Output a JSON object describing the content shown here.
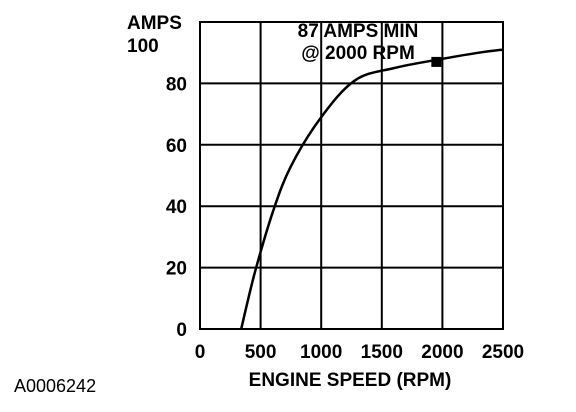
{
  "figure_id": "A0006242",
  "chart_data": {
    "type": "line",
    "title": "",
    "xlabel": "ENGINE SPEED (RPM)",
    "ylabel": "AMPS",
    "xlim": [
      0,
      2500
    ],
    "ylim": [
      0,
      100
    ],
    "x_ticks": [
      0,
      500,
      1000,
      1500,
      2000,
      2500
    ],
    "x_tick_labels": [
      "0",
      "500",
      "1000",
      "1500",
      "2000",
      "2500"
    ],
    "y_ticks": [
      0,
      20,
      40,
      60,
      80,
      100
    ],
    "y_tick_labels": [
      "0",
      "20",
      "40",
      "60",
      "80",
      "100"
    ],
    "grid": true,
    "series": [
      {
        "x": [
          340,
          450,
          600,
          750,
          1000,
          1280,
          1600,
          2000,
          2300,
          2500
        ],
        "y": [
          0,
          18,
          38,
          53,
          69,
          81,
          85,
          88,
          90,
          91
        ]
      }
    ],
    "marker": {
      "x": 1950,
      "y": 87
    },
    "annotation": {
      "lines": [
        "87 AMPS MIN",
        "@ 2000 RPM"
      ]
    }
  }
}
